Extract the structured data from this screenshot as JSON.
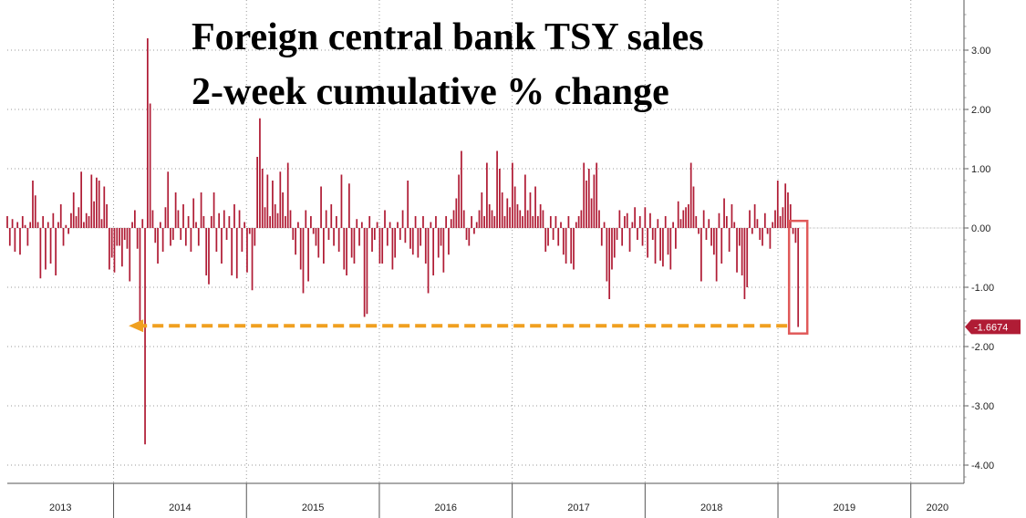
{
  "chart_data": {
    "type": "bar",
    "title": "Foreign central bank TSY sales",
    "subtitle": "2-week cumulative % change",
    "xlabel": "",
    "ylabel": "",
    "ylim": [
      -4.2,
      3.8
    ],
    "y_ticks": [
      "3.00",
      "2.00",
      "1.00",
      "0.00",
      "-1.00",
      "-2.00",
      "-3.00",
      "-4.00"
    ],
    "y_tick_values": [
      3,
      2,
      1,
      0,
      -1,
      -2,
      -3,
      -4
    ],
    "x_range": [
      2013.2,
      2020.4
    ],
    "year_labels": [
      "2013",
      "2014",
      "2015",
      "2016",
      "2017",
      "2018",
      "2019",
      "2020"
    ],
    "year_boundaries": [
      2014,
      2015,
      2016,
      2017,
      2018,
      2019,
      2020
    ],
    "gridlines": true,
    "bar_color": "#b01c35",
    "last_value": -1.6674,
    "last_value_label": "-1.6674",
    "reference_level": -1.65,
    "annotation_color": "#f0a020",
    "highlight_box_color": "#e05a5a",
    "x_start": 2013.2,
    "x_step": 0.0192,
    "values": [
      0.2,
      -0.3,
      0.15,
      -0.4,
      0.1,
      -0.45,
      0.2,
      0.05,
      -0.3,
      0.1,
      0.8,
      0.55,
      0.1,
      -0.85,
      0.2,
      -0.7,
      0.1,
      -0.6,
      0.25,
      -0.8,
      0.1,
      0.4,
      -0.3,
      0.05,
      -0.1,
      0.25,
      0.6,
      0.2,
      0.35,
      0.95,
      0.1,
      0.25,
      0.2,
      0.9,
      0.45,
      0.85,
      0.8,
      0.15,
      0.7,
      0.4,
      -0.7,
      -0.5,
      -0.75,
      -0.3,
      -0.3,
      -0.65,
      -0.2,
      -0.35,
      -0.9,
      0.1,
      0.3,
      -0.35,
      -1.65,
      0.15,
      -3.65,
      3.2,
      2.1,
      0.3,
      -0.25,
      -0.6,
      0.1,
      -0.4,
      0.35,
      0.95,
      -0.3,
      -0.2,
      0.6,
      0.3,
      -0.2,
      0.4,
      -0.3,
      0.2,
      -0.4,
      0.5,
      0.1,
      -0.3,
      0.6,
      0.2,
      -0.8,
      -0.95,
      0.2,
      0.6,
      -0.4,
      0.25,
      -0.6,
      0.3,
      -0.2,
      0.2,
      -0.8,
      0.4,
      -0.85,
      0.3,
      -0.4,
      0.1,
      -0.75,
      -0.1,
      -1.05,
      -0.3,
      1.2,
      1.85,
      1.0,
      0.35,
      0.9,
      0.2,
      0.8,
      0.4,
      0.25,
      0.95,
      0.6,
      0.2,
      1.1,
      0.3,
      -0.2,
      -0.45,
      0.1,
      -0.7,
      -1.1,
      0.3,
      -0.9,
      0.2,
      -0.1,
      -0.3,
      -0.5,
      0.7,
      -0.6,
      0.3,
      -0.2,
      0.4,
      -0.3,
      0.2,
      -0.4,
      0.9,
      -0.7,
      -0.8,
      0.75,
      -0.5,
      -0.6,
      0.15,
      -0.3,
      0.1,
      -1.5,
      -1.45,
      0.2,
      -0.4,
      -0.2,
      0.1,
      -0.6,
      -0.6,
      0.3,
      -0.3,
      0.1,
      -0.7,
      -0.5,
      0.1,
      -0.2,
      0.3,
      -0.25,
      0.8,
      -0.35,
      -0.45,
      0.2,
      -0.5,
      -0.3,
      0.2,
      -0.6,
      -1.1,
      0.1,
      -0.8,
      0.2,
      -0.5,
      -0.3,
      -0.75,
      0.2,
      -0.45,
      0.15,
      0.3,
      0.5,
      0.9,
      1.3,
      0.3,
      -0.2,
      -0.3,
      0.2,
      -0.1,
      0.1,
      0.3,
      0.6,
      0.2,
      1.1,
      0.4,
      0.3,
      0.2,
      1.3,
      1.0,
      0.6,
      0.2,
      0.5,
      0.35,
      1.1,
      0.7,
      0.4,
      0.3,
      0.2,
      0.9,
      0.3,
      0.6,
      0.2,
      0.7,
      0.2,
      0.4,
      0.3,
      -0.4,
      -0.3,
      0.2,
      -0.2,
      0.2,
      -0.3,
      0.1,
      -0.45,
      -0.6,
      0.2,
      -0.6,
      -0.7,
      0.1,
      0.2,
      0.3,
      1.1,
      0.8,
      1.0,
      0.5,
      0.9,
      1.1,
      0.3,
      -0.3,
      0.1,
      -0.9,
      -1.2,
      -0.7,
      -0.5,
      -0.2,
      0.3,
      -0.3,
      0.2,
      0.25,
      -0.4,
      0.1,
      0.35,
      -0.2,
      0.2,
      -0.3,
      0.35,
      -0.5,
      0.25,
      -0.2,
      -0.6,
      0.15,
      -0.55,
      -0.65,
      0.2,
      -0.45,
      -0.7,
      0.1,
      -0.35,
      0.45,
      0.15,
      0.3,
      0.35,
      0.4,
      1.1,
      0.7,
      0.2,
      -0.1,
      -0.9,
      0.3,
      -0.2,
      0.15,
      -0.3,
      -0.45,
      -0.9,
      0.25,
      -0.6,
      0.5,
      0.2,
      -0.4,
      0.4,
      0.1,
      -0.75,
      -0.3,
      -0.8,
      -1.2,
      -1.0,
      0.3,
      -0.1,
      0.4,
      0.15,
      -0.2,
      -0.3,
      0.25,
      -0.1,
      -0.35,
      0.1,
      0.3,
      0.8,
      0.2,
      0.35,
      0.75,
      0.6,
      0.4,
      -0.1,
      -0.25,
      -1.67
    ]
  }
}
